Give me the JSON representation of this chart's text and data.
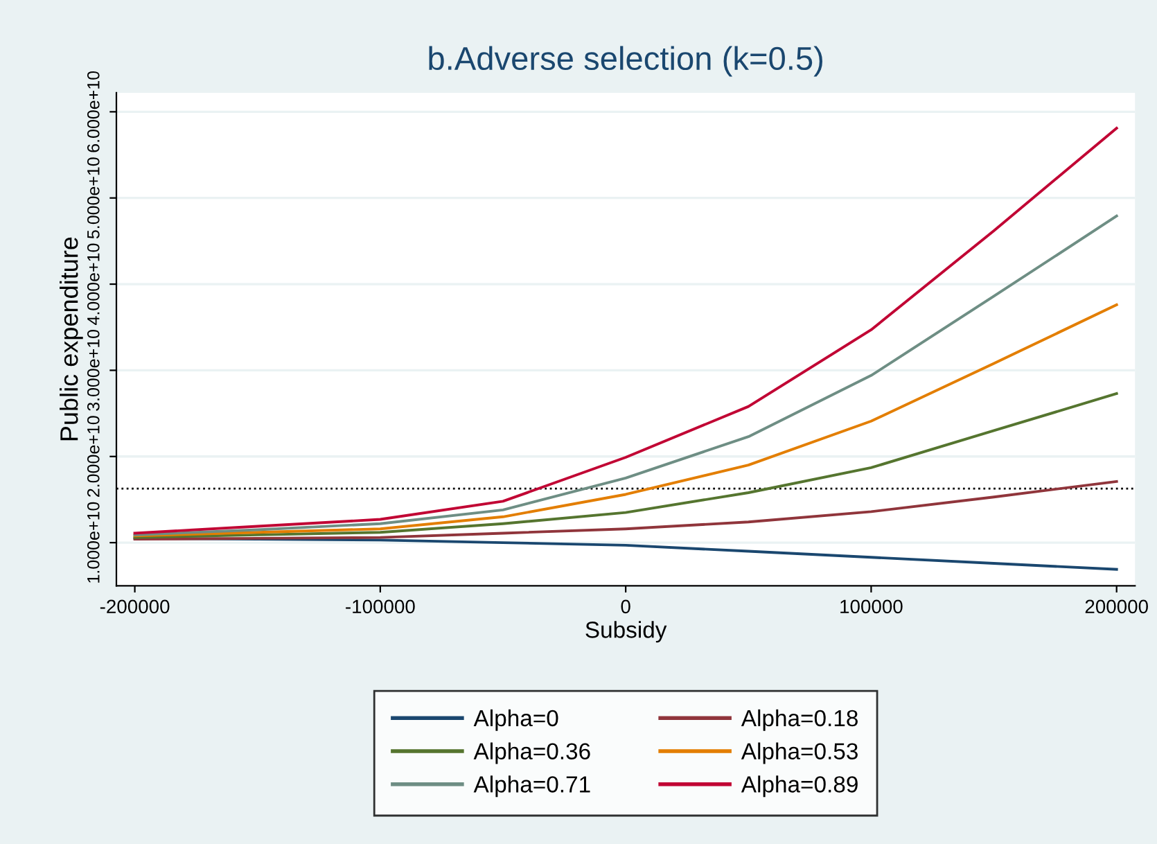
{
  "chart_data": {
    "type": "line",
    "title": "b.Adverse selection (k=0.5)",
    "xlabel": "Subsidy",
    "ylabel": "Public expenditure",
    "x": [
      -200000,
      -150000,
      -100000,
      -50000,
      0,
      50000,
      100000,
      150000,
      200000
    ],
    "series": [
      {
        "name": "Alpha=0",
        "color": "#1a476f",
        "values": [
          10500000000.0,
          10400000000.0,
          10300000000.0,
          10000000000.0,
          9700000000.0,
          9000000000.0,
          8300000000.0,
          7600000000.0,
          6900000000.0
        ]
      },
      {
        "name": "Alpha=0.18",
        "color": "#90353b",
        "values": [
          10400000000.0,
          10500000000.0,
          10600000000.0,
          11100000000.0,
          11600000000.0,
          12400000000.0,
          13600000000.0,
          15300000000.0,
          17100000000.0
        ]
      },
      {
        "name": "Alpha=0.36",
        "color": "#55752f",
        "values": [
          10600000000.0,
          10900000000.0,
          11200000000.0,
          12200000000.0,
          13500000000.0,
          15800000000.0,
          18700000000.0,
          23000000000.0,
          27300000000.0
        ]
      },
      {
        "name": "Alpha=0.53",
        "color": "#e37e00",
        "values": [
          10800000000.0,
          11200000000.0,
          11600000000.0,
          13000000000.0,
          15600000000.0,
          19000000000.0,
          24100000000.0,
          30800000000.0,
          37600000000.0
        ]
      },
      {
        "name": "Alpha=0.71",
        "color": "#6e8e84",
        "values": [
          10900000000.0,
          11500000000.0,
          12200000000.0,
          13800000000.0,
          17500000000.0,
          22300000000.0,
          29400000000.0,
          38600000000.0,
          47900000000.0
        ]
      },
      {
        "name": "Alpha=0.89",
        "color": "#c10534",
        "values": [
          11100000000.0,
          11900000000.0,
          12700000000.0,
          14800000000.0,
          19900000000.0,
          25800000000.0,
          34700000000.0,
          46200000000.0,
          58100000000.0
        ]
      }
    ],
    "xlim": [
      -207500,
      207500
    ],
    "xticks": [
      -200000,
      -100000,
      0,
      100000,
      200000
    ],
    "ylim": [
      5000000000.0,
      62200000000.0
    ],
    "yticks": [
      {
        "value": 10000000000.0,
        "label": "1.000e+10"
      },
      {
        "value": 20000000000.0,
        "label": "2.000e+10"
      },
      {
        "value": 30000000000.0,
        "label": "3.000e+10"
      },
      {
        "value": 40000000000.0,
        "label": "4.000e+10"
      },
      {
        "value": 50000000000.0,
        "label": "5.000e+10"
      },
      {
        "value": 60000000000.0,
        "label": "6.000e+10"
      }
    ],
    "ref_lines": [
      {
        "axis": "y",
        "value": 16270000000.0,
        "color": "#000000",
        "line_style": "dotted"
      }
    ],
    "grid": "y",
    "legend": "bottom",
    "line_style": "solid"
  }
}
